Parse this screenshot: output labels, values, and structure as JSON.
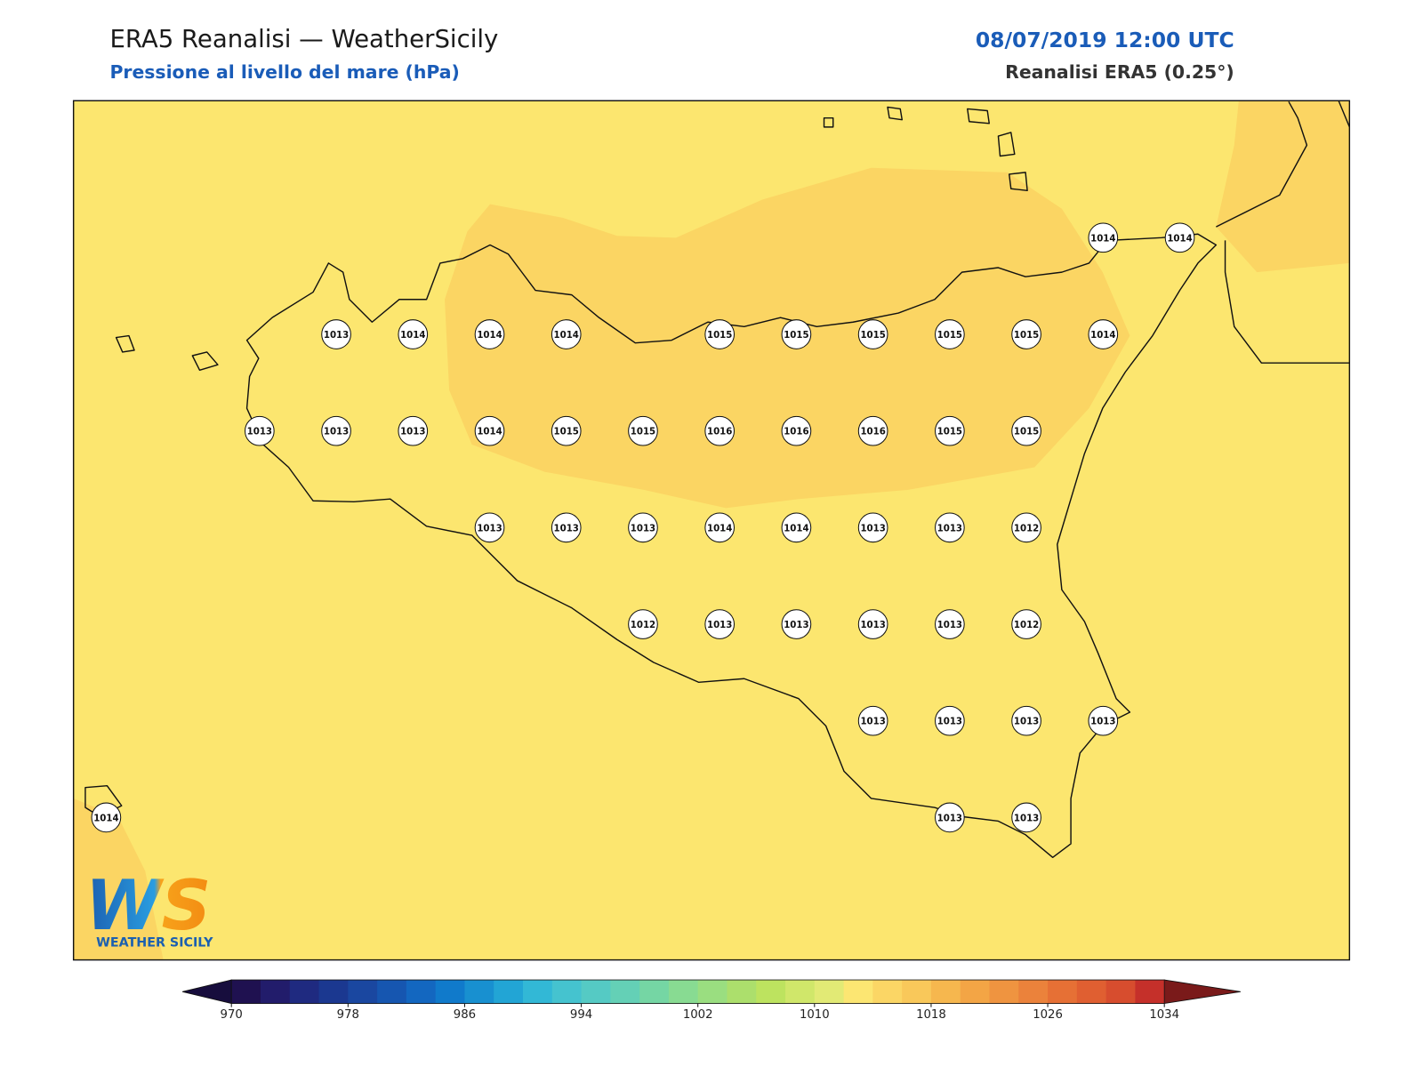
{
  "header": {
    "title": "ERA5 Reanalisi — WeatherSicily",
    "subtitle": "Pressione al livello del mare (hPa)",
    "date": "08/07/2019 12:00 UTC",
    "source": "Reanalisi ERA5 (0.25°)"
  },
  "logo": {
    "mark": "WS",
    "name": "WEATHER SICILY"
  },
  "grid": [
    [
      null,
      null,
      null,
      null,
      null,
      null,
      null,
      null,
      null,
      null,
      null,
      null,
      null,
      1014,
      1014
    ],
    [
      null,
      null,
      null,
      1013,
      1014,
      1014,
      1014,
      null,
      1015,
      1015,
      1015,
      1015,
      1015,
      1014,
      null
    ],
    [
      null,
      null,
      1013,
      1013,
      1013,
      1014,
      1015,
      1015,
      1016,
      1016,
      1016,
      1015,
      1015,
      null,
      null
    ],
    [
      null,
      null,
      null,
      null,
      null,
      1013,
      1013,
      1013,
      1014,
      1014,
      1013,
      1013,
      1012,
      null,
      null
    ],
    [
      null,
      null,
      null,
      null,
      null,
      null,
      null,
      1012,
      1013,
      1013,
      1013,
      1013,
      1012,
      null,
      null
    ],
    [
      null,
      null,
      null,
      null,
      null,
      null,
      null,
      null,
      null,
      null,
      1013,
      1013,
      1013,
      1013,
      null
    ],
    [
      1014,
      null,
      null,
      null,
      null,
      null,
      null,
      null,
      null,
      null,
      null,
      1013,
      1013,
      null,
      null
    ]
  ],
  "colorbar": {
    "ticks": [
      970,
      978,
      986,
      994,
      1002,
      1010,
      1018,
      1026,
      1034
    ],
    "colors": [
      "#1f1150",
      "#221c6b",
      "#1f2a80",
      "#1b3890",
      "#1a47a0",
      "#1656b0",
      "#1367c0",
      "#107acb",
      "#1890d0",
      "#22a5d5",
      "#32b8d6",
      "#45c3cf",
      "#55cac4",
      "#64d0b6",
      "#75d6a4",
      "#88db92",
      "#9ade80",
      "#acdf6c",
      "#bde35f",
      "#d0e76a",
      "#e2ea75",
      "#fce672",
      "#fbd665",
      "#f9c85a",
      "#f6b74e",
      "#f3a545",
      "#ef9440",
      "#eb823b",
      "#e67035",
      "#e05f31",
      "#d74d2e",
      "#c5302a"
    ],
    "under": "#170d3d",
    "over": "#7a1a1a"
  }
}
